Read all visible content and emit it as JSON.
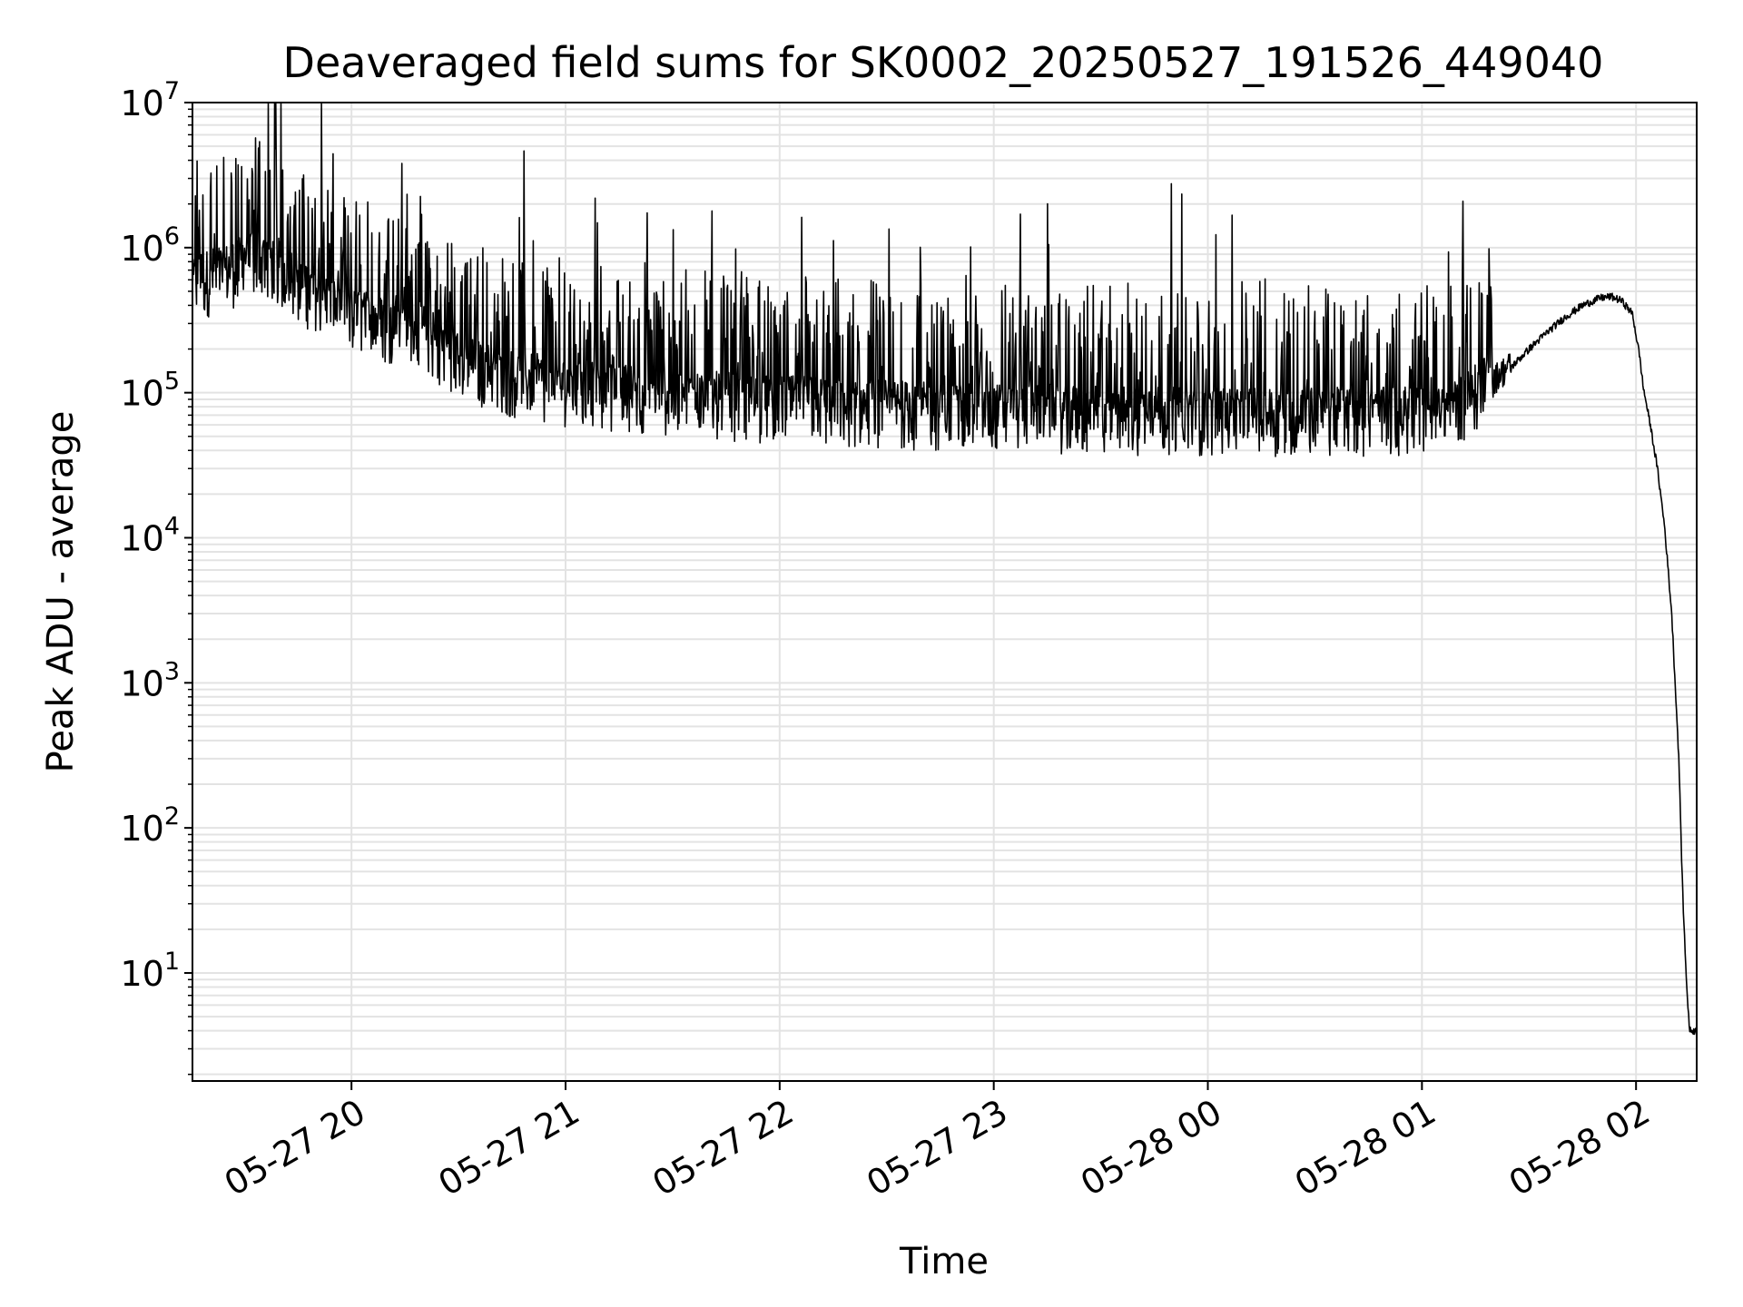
{
  "chart_data": {
    "type": "line",
    "title": "Deaveraged field sums for SK0002_20250527_191526_449040",
    "xlabel": "Time",
    "ylabel": "Peak ADU - average",
    "y_scale": "log",
    "ylim": [
      1.8,
      10000000
    ],
    "xlim": [
      "2025-05-27 19:15:26",
      "2025-05-28 02:17:00"
    ],
    "grid": true,
    "line_color": "#000000",
    "x_ticks": [
      {
        "value": "2025-05-27 20:00",
        "label": "05-27 20"
      },
      {
        "value": "2025-05-27 21:00",
        "label": "05-27 21"
      },
      {
        "value": "2025-05-27 22:00",
        "label": "05-27 22"
      },
      {
        "value": "2025-05-27 23:00",
        "label": "05-27 23"
      },
      {
        "value": "2025-05-28 00:00",
        "label": "05-28 00"
      },
      {
        "value": "2025-05-28 01:00",
        "label": "05-28 01"
      },
      {
        "value": "2025-05-28 02:00",
        "label": "05-28 02"
      }
    ],
    "y_ticks": [
      {
        "value": 10,
        "base": "10",
        "exp": "1"
      },
      {
        "value": 100,
        "base": "10",
        "exp": "2"
      },
      {
        "value": 1000,
        "base": "10",
        "exp": "3"
      },
      {
        "value": 10000,
        "base": "10",
        "exp": "4"
      },
      {
        "value": 100000,
        "base": "10",
        "exp": "5"
      },
      {
        "value": 1000000,
        "base": "10",
        "exp": "6"
      },
      {
        "value": 10000000,
        "base": "10",
        "exp": "7"
      }
    ],
    "series": [
      {
        "points": [
          [
            "2025-05-27 19:15:26",
            500000
          ],
          [
            "2025-05-27 19:20",
            600000
          ],
          [
            "2025-05-27 19:25",
            650000
          ],
          [
            "2025-05-27 19:30",
            750000
          ],
          [
            "2025-05-27 19:35",
            800000
          ],
          [
            "2025-05-27 19:40",
            700000
          ],
          [
            "2025-05-27 19:45",
            550000
          ],
          [
            "2025-05-27 19:50",
            450000
          ],
          [
            "2025-05-27 19:55",
            380000
          ],
          [
            "2025-05-27 20:00",
            320000
          ],
          [
            "2025-05-27 20:05",
            300000
          ],
          [
            "2025-05-27 20:10",
            280000
          ],
          [
            "2025-05-27 20:15",
            300000
          ],
          [
            "2025-05-27 20:20",
            250000
          ],
          [
            "2025-05-27 20:25",
            200000
          ],
          [
            "2025-05-27 20:30",
            160000
          ],
          [
            "2025-05-27 20:35",
            140000
          ],
          [
            "2025-05-27 20:40",
            130000
          ],
          [
            "2025-05-27 20:45",
            120000
          ],
          [
            "2025-05-27 20:50",
            115000
          ],
          [
            "2025-05-27 20:55",
            110000
          ],
          [
            "2025-05-27 21:00",
            105000
          ],
          [
            "2025-05-27 21:05",
            100000
          ],
          [
            "2025-05-27 21:10",
            100000
          ],
          [
            "2025-05-27 21:15",
            95000
          ],
          [
            "2025-05-27 21:20",
            95000
          ],
          [
            "2025-05-27 21:25",
            90000
          ],
          [
            "2025-05-27 21:30",
            90000
          ],
          [
            "2025-05-27 21:35",
            88000
          ],
          [
            "2025-05-27 21:40",
            85000
          ],
          [
            "2025-05-27 21:45",
            85000
          ],
          [
            "2025-05-27 21:50",
            82000
          ],
          [
            "2025-05-27 21:55",
            80000
          ],
          [
            "2025-05-27 22:00",
            80000
          ],
          [
            "2025-05-27 22:10",
            78000
          ],
          [
            "2025-05-27 22:20",
            75000
          ],
          [
            "2025-05-27 22:30",
            75000
          ],
          [
            "2025-05-27 22:40",
            72000
          ],
          [
            "2025-05-27 22:50",
            70000
          ],
          [
            "2025-05-27 23:00",
            70000
          ],
          [
            "2025-05-27 23:10",
            70000
          ],
          [
            "2025-05-27 23:20",
            68000
          ],
          [
            "2025-05-27 23:30",
            68000
          ],
          [
            "2025-05-27 23:40",
            67000
          ],
          [
            "2025-05-27 23:50",
            67000
          ],
          [
            "2025-05-28 00:00",
            66000
          ],
          [
            "2025-05-28 00:10",
            66000
          ],
          [
            "2025-05-28 00:20",
            66000
          ],
          [
            "2025-05-28 00:30",
            66000
          ],
          [
            "2025-05-28 00:40",
            66000
          ],
          [
            "2025-05-28 00:50",
            66000
          ],
          [
            "2025-05-28 01:00",
            68000
          ],
          [
            "2025-05-28 01:05",
            72000
          ],
          [
            "2025-05-28 01:10",
            80000
          ],
          [
            "2025-05-28 01:15",
            95000
          ],
          [
            "2025-05-28 01:20",
            120000
          ],
          [
            "2025-05-28 01:25",
            150000
          ],
          [
            "2025-05-28 01:30",
            200000
          ],
          [
            "2025-05-28 01:35",
            260000
          ],
          [
            "2025-05-28 01:40",
            330000
          ],
          [
            "2025-05-28 01:45",
            400000
          ],
          [
            "2025-05-28 01:50",
            450000
          ],
          [
            "2025-05-28 01:53",
            460000
          ],
          [
            "2025-05-28 01:56",
            430000
          ],
          [
            "2025-05-28 01:59",
            350000
          ],
          [
            "2025-05-28 02:00",
            250000
          ],
          [
            "2025-05-28 02:01",
            180000
          ],
          [
            "2025-05-28 02:02",
            110000
          ],
          [
            "2025-05-28 02:04",
            60000
          ],
          [
            "2025-05-28 02:06",
            30000
          ],
          [
            "2025-05-28 02:08",
            12000
          ],
          [
            "2025-05-28 02:10",
            3000
          ],
          [
            "2025-05-28 02:12",
            300
          ],
          [
            "2025-05-28 02:13",
            40
          ],
          [
            "2025-05-28 02:14",
            10
          ],
          [
            "2025-05-28 02:15",
            4
          ],
          [
            "2025-05-28 02:16",
            4
          ]
        ]
      }
    ]
  }
}
